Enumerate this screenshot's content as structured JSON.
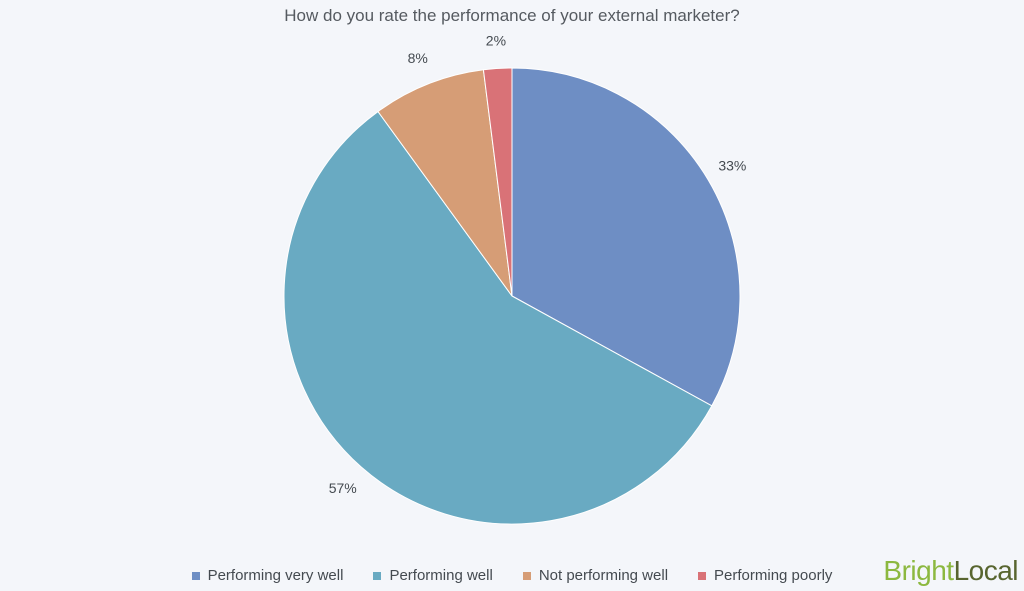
{
  "brand_colors": {
    "bright": "#8cb83f",
    "local": "#58652f",
    "background": "#f4f6fa"
  },
  "logo": {
    "part1": "Bright",
    "part2": "Local"
  },
  "chart_data": {
    "type": "pie",
    "title": "How do you rate the performance of your external marketer?",
    "categories": [
      "Performing very well",
      "Performing well",
      "Not performing well",
      "Performing poorly"
    ],
    "values": [
      33,
      57,
      8,
      2
    ],
    "labels": [
      "33%",
      "57%",
      "8%",
      "2%"
    ],
    "colors": [
      "#6e8ec4",
      "#69aac2",
      "#d69d76",
      "#d97277"
    ],
    "start_angle": "12 o'clock",
    "direction": "clockwise",
    "legend_position": "bottom"
  }
}
